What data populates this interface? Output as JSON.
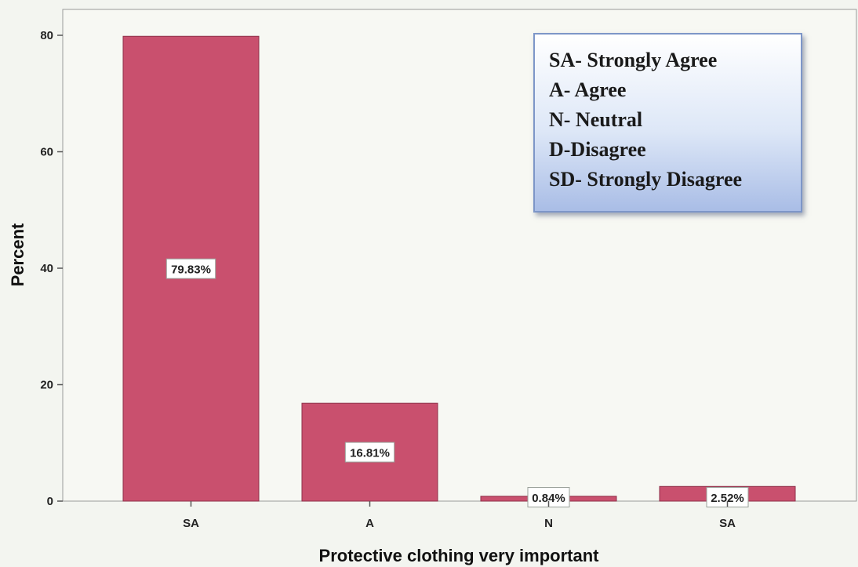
{
  "chart_data": {
    "type": "bar",
    "categories": [
      "SA",
      "A",
      "N",
      "SA"
    ],
    "values": [
      79.83,
      16.81,
      0.84,
      2.52
    ],
    "data_labels": [
      "79.83%",
      "16.81%",
      "0.84%",
      "2.52%"
    ],
    "xlabel": "Protective clothing very important",
    "ylabel": "Percent",
    "ylim": [
      0,
      80
    ],
    "yticks": [
      "0",
      "20",
      "40",
      "60",
      "80"
    ],
    "grid": false,
    "legend_placement": "top-right",
    "legend_lines": [
      "SA- Strongly Agree",
      "A- Agree",
      "N- Neutral",
      "D-Disagree",
      "SD- Strongly Disagree"
    ],
    "bar_color": "#c9506e",
    "plot_background": "#f7f8f3"
  }
}
